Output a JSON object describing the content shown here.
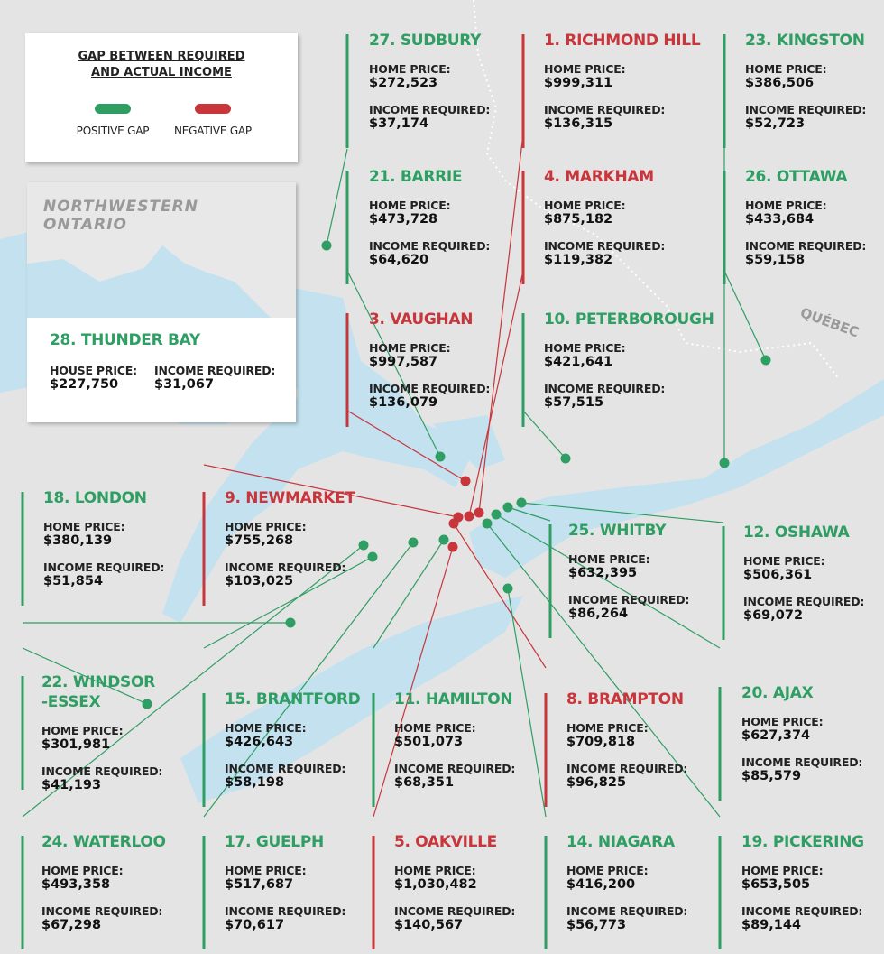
{
  "legend": {
    "title": "GAP BETWEEN REQUIRED\nAND ACTUAL INCOME",
    "items": [
      {
        "label": "POSITIVE GAP",
        "color": "#2f9e63"
      },
      {
        "label": "NEGATIVE GAP",
        "color": "#c8363c"
      }
    ]
  },
  "inset": {
    "title": "NORTHWESTERN\nONTARIO"
  },
  "map_labels": {
    "quebec": "QUÉBEC"
  },
  "cities": [
    {
      "title": "27. SUDBURY",
      "color": "#2f9e63",
      "price_label": "HOME PRICE:",
      "price": "$272,523",
      "income_label": "INCOME REQUIRED:",
      "income": "$37,174"
    },
    {
      "title": "1. RICHMOND HILL",
      "color": "#c8363c",
      "price_label": "HOME PRICE:",
      "price": "$999,311",
      "income_label": "INCOME REQUIRED:",
      "income": "$136,315"
    },
    {
      "title": "23. KINGSTON",
      "color": "#2f9e63",
      "price_label": "HOME PRICE:",
      "price": "$386,506",
      "income_label": "INCOME REQUIRED:",
      "income": "$52,723"
    },
    {
      "title": "21. BARRIE",
      "color": "#2f9e63",
      "price_label": "HOME PRICE:",
      "price": "$473,728",
      "income_label": "INCOME REQUIRED:",
      "income": "$64,620"
    },
    {
      "title": "4. MARKHAM",
      "color": "#c8363c",
      "price_label": "HOME PRICE:",
      "price": "$875,182",
      "income_label": "INCOME REQUIRED:",
      "income": "$119,382"
    },
    {
      "title": "26. OTTAWA",
      "color": "#2f9e63",
      "price_label": "HOME PRICE:",
      "price": "$433,684",
      "income_label": "INCOME REQUIRED:",
      "income": "$59,158"
    },
    {
      "title": "3. VAUGHAN",
      "color": "#c8363c",
      "price_label": "HOME PRICE:",
      "price": "$997,587",
      "income_label": "INCOME REQUIRED:",
      "income": "$136,079"
    },
    {
      "title": "10. PETERBOROUGH",
      "color": "#2f9e63",
      "price_label": "HOME PRICE:",
      "price": "$421,641",
      "income_label": "INCOME REQUIRED:",
      "income": "$57,515"
    },
    {
      "title": "28. THUNDER BAY",
      "color": "#2f9e63",
      "price_label": "HOUSE PRICE:",
      "price": "$227,750",
      "income_label": "INCOME REQUIRED:",
      "income": "$31,067"
    },
    {
      "title": "18. LONDON",
      "color": "#2f9e63",
      "price_label": "HOME PRICE:",
      "price": "$380,139",
      "income_label": "INCOME REQUIRED:",
      "income": "$51,854"
    },
    {
      "title": "9. NEWMARKET",
      "color": "#c8363c",
      "price_label": "HOME PRICE:",
      "price": "$755,268",
      "income_label": "INCOME REQUIRED:",
      "income": "$103,025"
    },
    {
      "title": "25. WHITBY",
      "color": "#2f9e63",
      "price_label": "HOME PRICE:",
      "price": "$632,395",
      "income_label": "INCOME REQUIRED:",
      "income": "$86,264"
    },
    {
      "title": "12. OSHAWA",
      "color": "#2f9e63",
      "price_label": "HOME PRICE:",
      "price": "$506,361",
      "income_label": "INCOME REQUIRED:",
      "income": "$69,072"
    },
    {
      "title": "22. WINDSOR\n-ESSEX",
      "color": "#2f9e63",
      "price_label": "HOME PRICE:",
      "price": "$301,981",
      "income_label": "INCOME REQUIRED:",
      "income": "$41,193"
    },
    {
      "title": "15. BRANTFORD",
      "color": "#2f9e63",
      "price_label": "HOME PRICE:",
      "price": "$426,643",
      "income_label": "INCOME REQUIRED:",
      "income": "$58,198"
    },
    {
      "title": "11. HAMILTON",
      "color": "#2f9e63",
      "price_label": "HOME PRICE:",
      "price": "$501,073",
      "income_label": "INCOME REQUIRED:",
      "income": "$68,351"
    },
    {
      "title": "8. BRAMPTON",
      "color": "#c8363c",
      "price_label": "HOME PRICE:",
      "price": "$709,818",
      "income_label": "INCOME REQUIRED:",
      "income": "$96,825"
    },
    {
      "title": "20. AJAX",
      "color": "#2f9e63",
      "price_label": "HOME PRICE:",
      "price": "$627,374",
      "income_label": "INCOME REQUIRED:",
      "income": "$85,579"
    },
    {
      "title": "24. WATERLOO",
      "color": "#2f9e63",
      "price_label": "HOME PRICE:",
      "price": "$493,358",
      "income_label": "INCOME REQUIRED:",
      "income": "$67,298"
    },
    {
      "title": "17. GUELPH",
      "color": "#2f9e63",
      "price_label": "HOME PRICE:",
      "price": "$517,687",
      "income_label": "INCOME REQUIRED:",
      "income": "$70,617"
    },
    {
      "title": "5. OAKVILLE",
      "color": "#c8363c",
      "price_label": "HOME PRICE:",
      "price": "$1,030,482",
      "income_label": "INCOME REQUIRED:",
      "income": "$140,567"
    },
    {
      "title": "14. NIAGARA",
      "color": "#2f9e63",
      "price_label": "HOME PRICE:",
      "price": "$416,200",
      "income_label": "INCOME REQUIRED:",
      "income": "$56,773"
    },
    {
      "title": "19. PICKERING",
      "color": "#2f9e63",
      "price_label": "HOME PRICE:",
      "price": "$653,505",
      "income_label": "INCOME REQUIRED:",
      "income": "$89,144"
    }
  ]
}
